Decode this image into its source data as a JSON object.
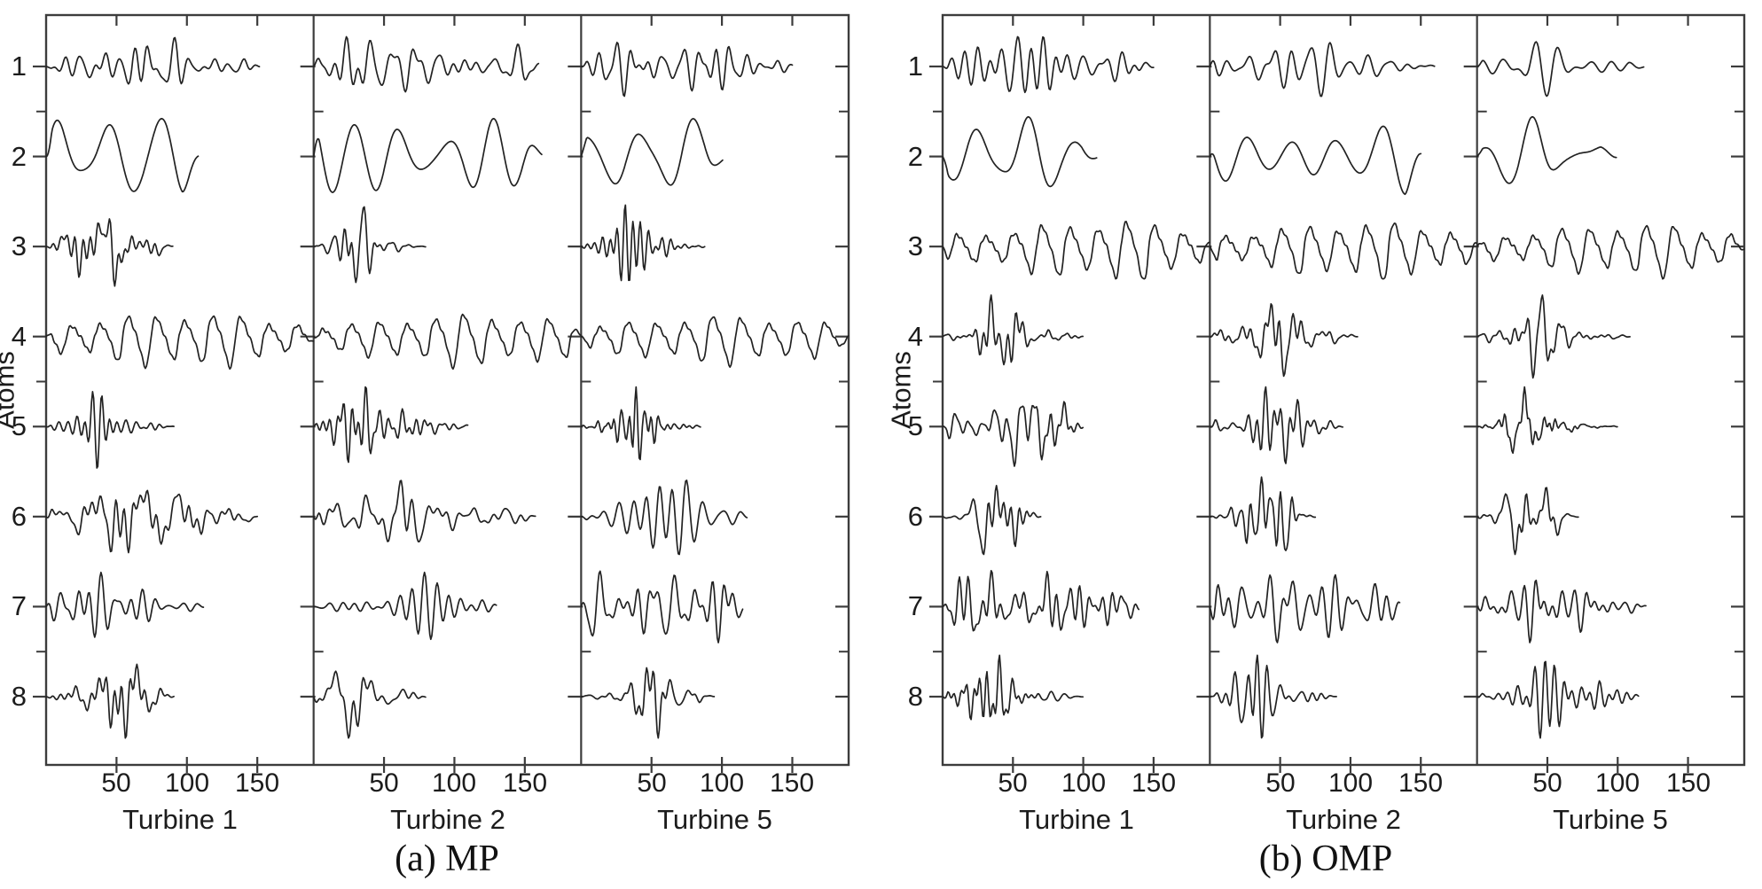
{
  "figure": {
    "background": "#ffffff",
    "colors": {
      "trace": "#222222",
      "axis": "#3c3c3c",
      "tick": "#3c3c3c",
      "text": "#1c1c1c"
    },
    "ylabel": "Atoms",
    "atom_labels": [
      "1",
      "2",
      "3",
      "4",
      "5",
      "6",
      "7",
      "8"
    ],
    "x_tick_labels": [
      "50",
      "100",
      "150"
    ]
  },
  "chart_data": {
    "type": "line",
    "description": "Dictionary atoms (8 waveforms per subplot) learned per turbine; left panel MP, right panel OMP",
    "x_range": [
      0,
      190
    ],
    "x_ticks": [
      50,
      100,
      150
    ],
    "y_ticks_atoms": [
      1,
      2,
      3,
      4,
      5,
      6,
      7,
      8
    ],
    "y_minor_ticks_atoms": [
      1.5,
      4.5,
      7.5
    ],
    "ylabel": "Atoms",
    "grid": false,
    "legend": false,
    "panels": [
      {
        "caption": "(a) MP",
        "subplots": [
          {
            "xlabel": "Turbine 1",
            "traces": [
              {
                "atom": 1,
                "kind": "osc",
                "period": 14,
                "amp": 0.32,
                "len": 152,
                "seed": 11
              },
              {
                "atom": 2,
                "kind": "smooth",
                "period": 38,
                "amp": 0.42,
                "len": 108,
                "seed": 12
              },
              {
                "atom": 3,
                "kind": "burst",
                "period": 8.5,
                "amp": 0.44,
                "len": 90,
                "seed": 13
              },
              {
                "atom": 4,
                "kind": "saw",
                "period": 20,
                "amp": 0.36,
                "len": 190,
                "seed": 14
              },
              {
                "atom": 5,
                "kind": "burst",
                "period": 8.5,
                "amp": 0.46,
                "len": 91,
                "seed": 15
              },
              {
                "atom": 6,
                "kind": "burst",
                "period": 11,
                "amp": 0.4,
                "len": 150,
                "seed": 16
              },
              {
                "atom": 7,
                "kind": "osc",
                "period": 12,
                "amp": 0.38,
                "len": 112,
                "seed": 17
              },
              {
                "atom": 8,
                "kind": "burst",
                "period": 10,
                "amp": 0.46,
                "len": 91,
                "seed": 18
              }
            ]
          },
          {
            "xlabel": "Turbine 2",
            "traces": [
              {
                "atom": 1,
                "kind": "osc",
                "period": 14,
                "amp": 0.33,
                "len": 160,
                "seed": 21
              },
              {
                "atom": 2,
                "kind": "smooth",
                "period": 38,
                "amp": 0.42,
                "len": 162,
                "seed": 22
              },
              {
                "atom": 3,
                "kind": "burst",
                "period": 8.5,
                "amp": 0.44,
                "len": 80,
                "seed": 23
              },
              {
                "atom": 4,
                "kind": "saw",
                "period": 20,
                "amp": 0.36,
                "len": 190,
                "seed": 24
              },
              {
                "atom": 5,
                "kind": "burst",
                "period": 8.5,
                "amp": 0.44,
                "len": 110,
                "seed": 25
              },
              {
                "atom": 6,
                "kind": "burst",
                "period": 11,
                "amp": 0.4,
                "len": 158,
                "seed": 26
              },
              {
                "atom": 7,
                "kind": "osc",
                "period": 12,
                "amp": 0.38,
                "len": 130,
                "seed": 27
              },
              {
                "atom": 8,
                "kind": "burst",
                "period": 10,
                "amp": 0.46,
                "len": 80,
                "seed": 28
              }
            ]
          },
          {
            "xlabel": "Turbine 5",
            "traces": [
              {
                "atom": 1,
                "kind": "osc",
                "period": 14,
                "amp": 0.33,
                "len": 150,
                "seed": 31
              },
              {
                "atom": 2,
                "kind": "smooth",
                "period": 38,
                "amp": 0.42,
                "len": 101,
                "seed": 32
              },
              {
                "atom": 3,
                "kind": "burst",
                "period": 8.5,
                "amp": 0.46,
                "len": 88,
                "seed": 33
              },
              {
                "atom": 4,
                "kind": "saw",
                "period": 20,
                "amp": 0.34,
                "len": 190,
                "seed": 34
              },
              {
                "atom": 5,
                "kind": "burst",
                "period": 8.5,
                "amp": 0.44,
                "len": 85,
                "seed": 35
              },
              {
                "atom": 6,
                "kind": "burst",
                "period": 11,
                "amp": 0.42,
                "len": 118,
                "seed": 36
              },
              {
                "atom": 7,
                "kind": "osc",
                "period": 12,
                "amp": 0.4,
                "len": 115,
                "seed": 37
              },
              {
                "atom": 8,
                "kind": "burst",
                "period": 10,
                "amp": 0.46,
                "len": 95,
                "seed": 38
              }
            ]
          }
        ]
      },
      {
        "caption": "(b) OMP",
        "subplots": [
          {
            "xlabel": "Turbine 1",
            "traces": [
              {
                "atom": 1,
                "kind": "osc",
                "period": 14,
                "amp": 0.33,
                "len": 150,
                "seed": 41
              },
              {
                "atom": 2,
                "kind": "smooth",
                "period": 38,
                "amp": 0.44,
                "len": 110,
                "seed": 42
              },
              {
                "atom": 3,
                "kind": "saw",
                "period": 20,
                "amp": 0.36,
                "len": 190,
                "seed": 43
              },
              {
                "atom": 4,
                "kind": "burst",
                "period": 9,
                "amp": 0.46,
                "len": 100,
                "seed": 44
              },
              {
                "atom": 5,
                "kind": "burst",
                "period": 8.5,
                "amp": 0.44,
                "len": 100,
                "seed": 45
              },
              {
                "atom": 6,
                "kind": "burst",
                "period": 9,
                "amp": 0.42,
                "len": 70,
                "seed": 46
              },
              {
                "atom": 7,
                "kind": "osc",
                "period": 11,
                "amp": 0.4,
                "len": 140,
                "seed": 47
              },
              {
                "atom": 8,
                "kind": "burst",
                "period": 10,
                "amp": 0.46,
                "len": 100,
                "seed": 48
              }
            ]
          },
          {
            "xlabel": "Turbine 2",
            "traces": [
              {
                "atom": 1,
                "kind": "osc",
                "period": 14,
                "amp": 0.33,
                "len": 160,
                "seed": 51
              },
              {
                "atom": 2,
                "kind": "smooth",
                "period": 34,
                "amp": 0.42,
                "len": 150,
                "seed": 52
              },
              {
                "atom": 3,
                "kind": "saw",
                "period": 20,
                "amp": 0.36,
                "len": 190,
                "seed": 53
              },
              {
                "atom": 4,
                "kind": "burst",
                "period": 9,
                "amp": 0.44,
                "len": 105,
                "seed": 54
              },
              {
                "atom": 5,
                "kind": "burst",
                "period": 8.5,
                "amp": 0.44,
                "len": 95,
                "seed": 55
              },
              {
                "atom": 6,
                "kind": "burst",
                "period": 9,
                "amp": 0.44,
                "len": 75,
                "seed": 56
              },
              {
                "atom": 7,
                "kind": "osc",
                "period": 11,
                "amp": 0.4,
                "len": 135,
                "seed": 57
              },
              {
                "atom": 8,
                "kind": "burst",
                "period": 10,
                "amp": 0.46,
                "len": 90,
                "seed": 58
              }
            ]
          },
          {
            "xlabel": "Turbine 5",
            "traces": [
              {
                "atom": 1,
                "kind": "osc",
                "period": 14,
                "amp": 0.33,
                "len": 119,
                "seed": 61
              },
              {
                "atom": 2,
                "kind": "smooth",
                "period": 34,
                "amp": 0.44,
                "len": 99,
                "seed": 62
              },
              {
                "atom": 3,
                "kind": "saw",
                "period": 20,
                "amp": 0.36,
                "len": 190,
                "seed": 63
              },
              {
                "atom": 4,
                "kind": "burst",
                "period": 9,
                "amp": 0.46,
                "len": 109,
                "seed": 64
              },
              {
                "atom": 5,
                "kind": "burst",
                "period": 8.5,
                "amp": 0.44,
                "len": 100,
                "seed": 65
              },
              {
                "atom": 6,
                "kind": "burst",
                "period": 9,
                "amp": 0.42,
                "len": 72,
                "seed": 66
              },
              {
                "atom": 7,
                "kind": "osc",
                "period": 11,
                "amp": 0.4,
                "len": 120,
                "seed": 67
              },
              {
                "atom": 8,
                "kind": "burst",
                "period": 10,
                "amp": 0.46,
                "len": 115,
                "seed": 68
              }
            ]
          }
        ]
      }
    ]
  }
}
